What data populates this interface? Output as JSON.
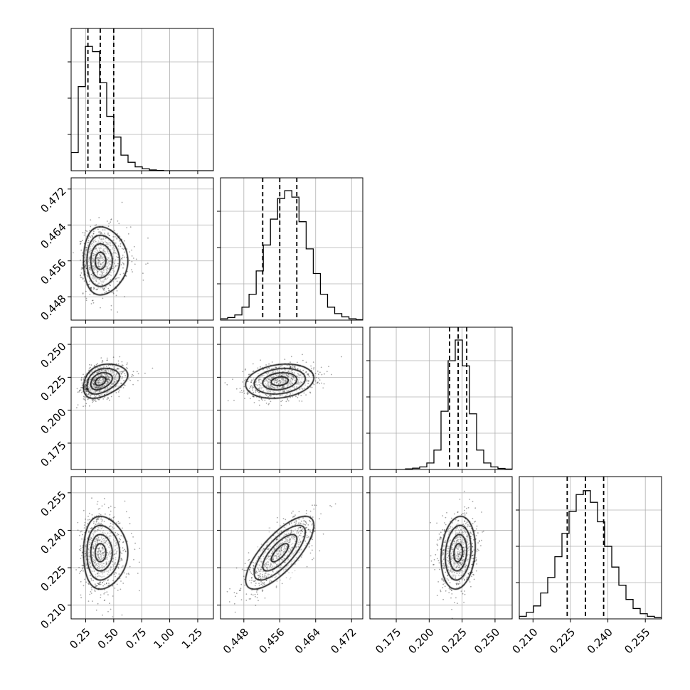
{
  "chart_data": {
    "type": "corner",
    "n_params": 4,
    "grid": true,
    "title": "",
    "axes": [
      {
        "range": [
          0.12,
          1.39
        ],
        "ticks": [
          0.25,
          0.5,
          0.75,
          1.0,
          1.25
        ],
        "tick_labels": [
          "0.25",
          "0.50",
          "0.75",
          "1.00",
          "1.25"
        ]
      },
      {
        "range": [
          0.4428,
          0.4745
        ],
        "ticks": [
          0.448,
          0.456,
          0.464,
          0.472
        ],
        "tick_labels": [
          "0.448",
          "0.456",
          "0.464",
          "0.472"
        ]
      },
      {
        "range": [
          0.155,
          0.263
        ],
        "ticks": [
          0.175,
          0.2,
          0.225,
          0.25
        ],
        "tick_labels": [
          "0.175",
          "0.200",
          "0.225",
          "0.250"
        ]
      },
      {
        "range": [
          0.2045,
          0.2615
        ],
        "ticks": [
          0.21,
          0.225,
          0.24,
          0.255
        ],
        "tick_labels": [
          "0.210",
          "0.225",
          "0.240",
          "0.255"
        ]
      }
    ],
    "posteriors": [
      {
        "median": 0.38,
        "sd": 0.1,
        "skew": 1,
        "quantiles": [
          0.27,
          0.38,
          0.5
        ],
        "histogram": {
          "edges_min": 0.12,
          "bin_width": 0.0635,
          "counts": [
            0.14,
            0.65,
            0.96,
            0.92,
            0.68,
            0.42,
            0.26,
            0.12,
            0.065,
            0.03,
            0.015,
            0.006,
            0.002,
            0,
            0,
            0,
            0,
            0,
            0,
            0
          ]
        }
      },
      {
        "median": 0.456,
        "sd": 0.0038,
        "skew": 0,
        "quantiles": [
          0.4522,
          0.456,
          0.4598
        ],
        "histogram": {
          "edges_min": 0.4428,
          "bin_width": 0.00159,
          "counts": [
            0.01,
            0.02,
            0.04,
            0.1,
            0.2,
            0.38,
            0.58,
            0.78,
            0.94,
            1.0,
            0.95,
            0.76,
            0.55,
            0.36,
            0.2,
            0.1,
            0.05,
            0.025,
            0.01,
            0.003
          ]
        }
      },
      {
        "median": 0.222,
        "sd": 0.0065,
        "skew": 0,
        "quantiles": [
          0.2155,
          0.222,
          0.2285
        ],
        "histogram": {
          "edges_min": 0.155,
          "bin_width": 0.0054,
          "counts": [
            0,
            0,
            0,
            0,
            0,
            0.005,
            0.01,
            0.02,
            0.05,
            0.15,
            0.45,
            0.84,
            1.0,
            0.8,
            0.43,
            0.15,
            0.05,
            0.02,
            0.008,
            0.003
          ]
        }
      },
      {
        "median": 0.231,
        "sd": 0.0073,
        "skew": 0,
        "quantiles": [
          0.2237,
          0.231,
          0.2383
        ],
        "histogram": {
          "edges_min": 0.2045,
          "bin_width": 0.00285,
          "counts": [
            0.02,
            0.05,
            0.1,
            0.2,
            0.32,
            0.48,
            0.66,
            0.83,
            0.96,
            0.99,
            0.9,
            0.75,
            0.56,
            0.4,
            0.26,
            0.15,
            0.08,
            0.04,
            0.02,
            0.01
          ]
        }
      }
    ],
    "correlations": [
      {
        "i": 1,
        "j": 0,
        "rho": 0.0
      },
      {
        "i": 2,
        "j": 0,
        "rho": 0.35
      },
      {
        "i": 2,
        "j": 1,
        "rho": 0.2
      },
      {
        "i": 3,
        "j": 0,
        "rho": 0.0
      },
      {
        "i": 3,
        "j": 1,
        "rho": 0.75
      },
      {
        "i": 3,
        "j": 2,
        "rho": 0.15
      }
    ],
    "contour_levels_sigma": [
      0.5,
      1.0,
      1.5,
      2.0
    ],
    "scatter_points_per_panel": 900
  }
}
